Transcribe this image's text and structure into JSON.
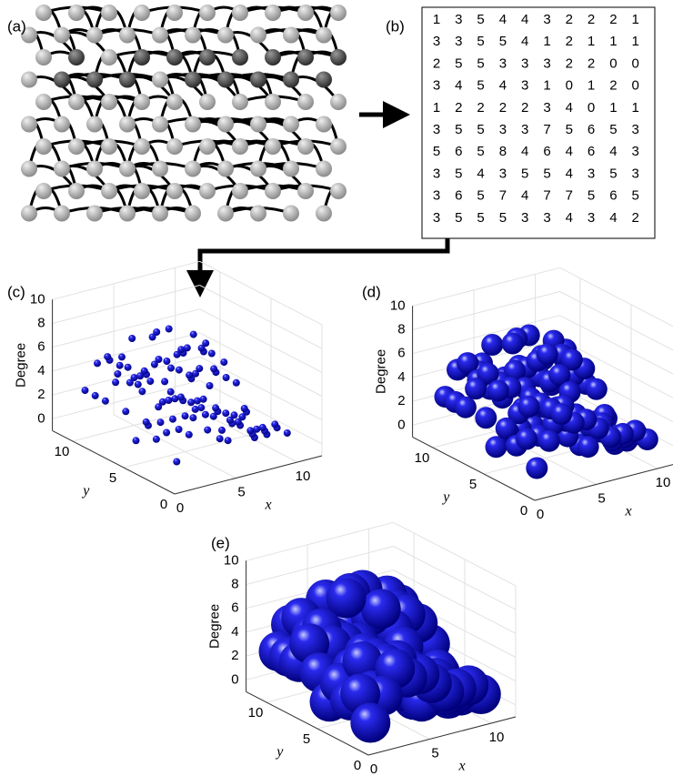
{
  "panels": {
    "a": {
      "label": "(a)"
    },
    "b": {
      "label": "(b)",
      "matrix": [
        [
          1,
          3,
          5,
          4,
          4,
          3,
          2,
          2,
          2,
          1
        ],
        [
          3,
          3,
          5,
          5,
          4,
          1,
          2,
          1,
          1,
          1
        ],
        [
          2,
          5,
          5,
          3,
          3,
          3,
          2,
          2,
          0,
          0
        ],
        [
          3,
          4,
          5,
          4,
          3,
          1,
          0,
          1,
          2,
          0
        ],
        [
          1,
          2,
          2,
          2,
          2,
          3,
          4,
          0,
          1,
          1
        ],
        [
          3,
          5,
          5,
          3,
          3,
          7,
          5,
          6,
          5,
          3
        ],
        [
          5,
          6,
          5,
          8,
          4,
          6,
          4,
          6,
          4,
          3
        ],
        [
          3,
          5,
          4,
          3,
          5,
          5,
          4,
          3,
          5,
          3
        ],
        [
          3,
          6,
          5,
          7,
          4,
          7,
          7,
          5,
          6,
          5
        ],
        [
          3,
          5,
          5,
          5,
          3,
          3,
          4,
          3,
          4,
          2
        ]
      ]
    },
    "c": {
      "label": "(c)"
    },
    "d": {
      "label": "(d)"
    },
    "e": {
      "label": "(e)"
    }
  },
  "plot": {
    "zlabel": "Degree",
    "xlabel": "x",
    "ylabel": "y",
    "xlim": [
      0,
      12
    ],
    "ylim": [
      0,
      12
    ],
    "zlim": [
      -1,
      10
    ],
    "xticks": [
      0,
      5,
      10
    ],
    "yticks": [
      0,
      5,
      10
    ],
    "zticks": [
      0,
      2,
      4,
      6,
      8,
      10
    ]
  }
}
